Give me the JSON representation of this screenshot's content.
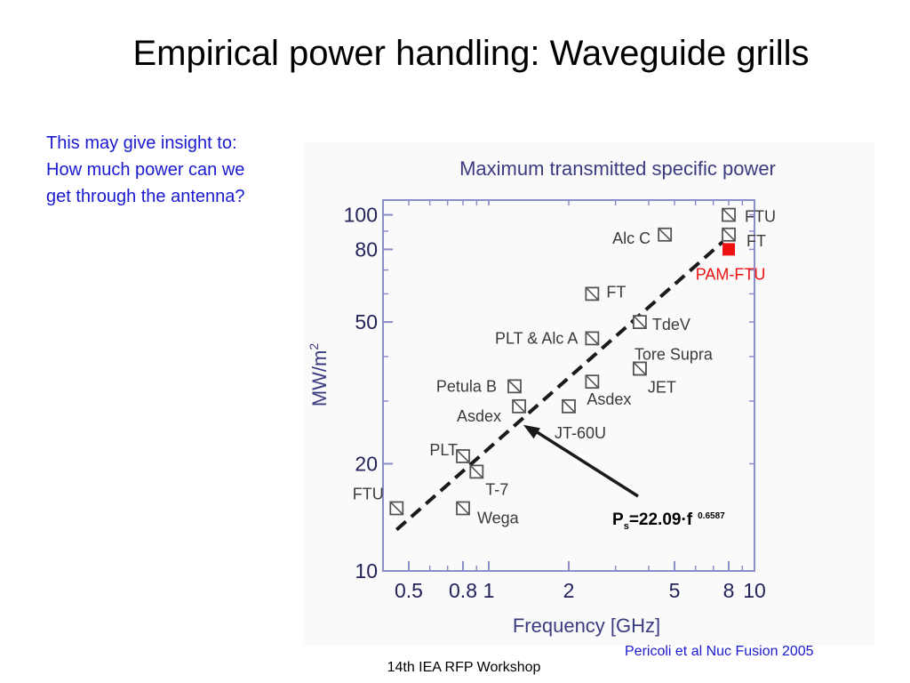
{
  "slide": {
    "title": "Empirical power handling: Waveguide grills",
    "insight_lines": [
      "This may give insight to:",
      "How much power can we",
      "get through the antenna?"
    ],
    "citation": "Pericoli et al Nuc Fusion 2005",
    "footer": "14th IEA RFP Workshop"
  },
  "chart_data": {
    "type": "scatter",
    "title": "Maximum transmitted specific power",
    "xlabel": "Frequency [GHz]",
    "ylabel": "MW/m",
    "ylabel_superscript": "2",
    "xscale": "log",
    "yscale": "log",
    "xlim": [
      0.4,
      10
    ],
    "ylim": [
      10,
      110
    ],
    "xticks": [
      0.5,
      0.8,
      1,
      2,
      5,
      8,
      10
    ],
    "xtick_labels": [
      "0.5",
      "0.8",
      "1",
      "2",
      "5",
      "8",
      "10"
    ],
    "yticks": [
      10,
      20,
      50,
      80,
      100
    ],
    "ytick_labels": [
      "10",
      "20",
      "50",
      "80",
      "100"
    ],
    "grid": false,
    "points": [
      {
        "label": "FTU",
        "x": 0.45,
        "y": 15
      },
      {
        "label": "Wega",
        "x": 0.8,
        "y": 15
      },
      {
        "label": "T-7",
        "x": 0.9,
        "y": 19
      },
      {
        "label": "PLT",
        "x": 0.8,
        "y": 21
      },
      {
        "label": "Asdex",
        "x": 1.3,
        "y": 29
      },
      {
        "label": "Petula B",
        "x": 1.25,
        "y": 33
      },
      {
        "label": "JT-60U",
        "x": 2.0,
        "y": 29
      },
      {
        "label": "Asdex",
        "x": 2.45,
        "y": 34
      },
      {
        "label": "PLT & Alc A",
        "x": 2.45,
        "y": 45
      },
      {
        "label": "FT",
        "x": 2.45,
        "y": 60
      },
      {
        "label": "TdeV",
        "x": 3.7,
        "y": 50
      },
      {
        "label": "Tore Supra",
        "x": 3.7,
        "y": 37
      },
      {
        "label": "JET",
        "x": 3.7,
        "y": 37
      },
      {
        "label": "Alc C",
        "x": 4.6,
        "y": 88
      },
      {
        "label": "FTU",
        "x": 8.0,
        "y": 100
      },
      {
        "label": "FT",
        "x": 8.0,
        "y": 88
      }
    ],
    "highlight": {
      "label": "PAM-FTU",
      "x": 8.0,
      "y": 80,
      "color": "#ee1111"
    },
    "fit": {
      "coefficient": 22.09,
      "exponent": 0.6587,
      "label_main": "P",
      "label_sub": "s",
      "label_eq": "=22.09·f",
      "label_exp": "0.6587",
      "x_range": [
        0.45,
        7.6
      ]
    },
    "colors": {
      "axis": "#8c8cc8",
      "text": "#23235a",
      "label": "#3a3a3a",
      "marker": "#555555",
      "fit": "#1a1a1a",
      "highlight": "#ee1111"
    }
  }
}
